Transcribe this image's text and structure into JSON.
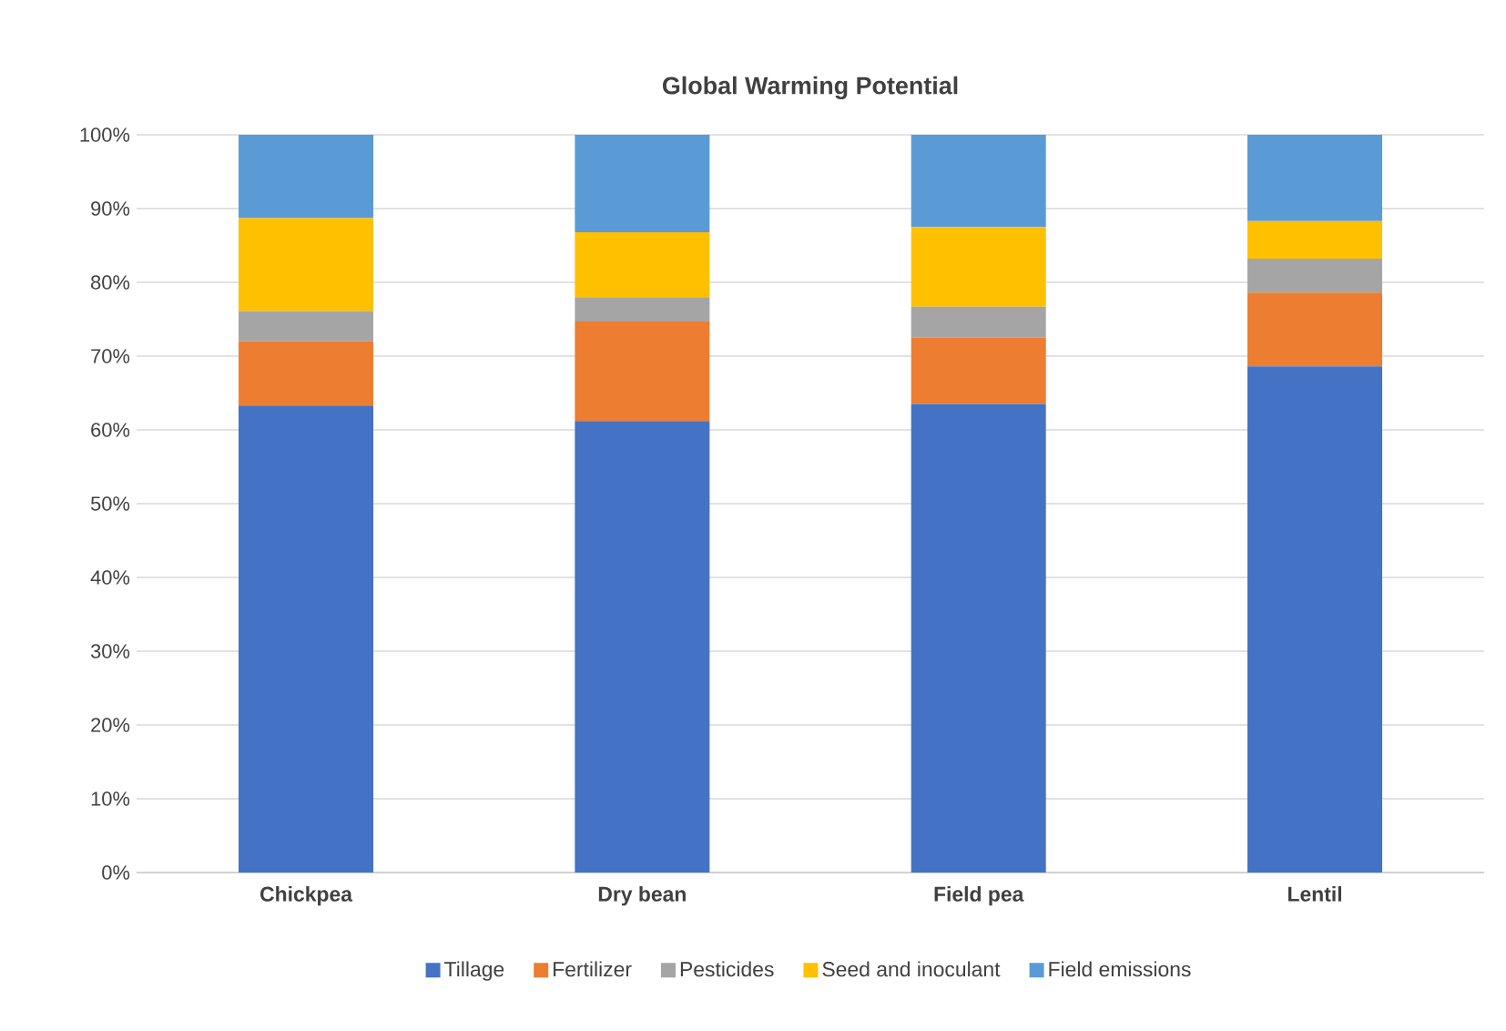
{
  "chart_data": {
    "type": "bar",
    "title": "Global Warming Potential",
    "stacked": true,
    "categories": [
      "Chickpea",
      "Dry bean",
      "Field pea",
      "Lentil"
    ],
    "series": [
      {
        "name": "Tillage",
        "color": "#4472c4",
        "values": [
          63.3,
          61.2,
          63.5,
          68.6
        ]
      },
      {
        "name": "Fertilizer",
        "color": "#ed7d31",
        "values": [
          8.7,
          13.5,
          9.0,
          10.0
        ]
      },
      {
        "name": "Pesticides",
        "color": "#a5a5a5",
        "values": [
          4.1,
          3.3,
          4.2,
          4.6
        ]
      },
      {
        "name": "Seed and inoculant",
        "color": "#ffc000",
        "values": [
          12.6,
          8.8,
          10.8,
          5.1
        ]
      },
      {
        "name": "Field emissions",
        "color": "#5b9bd5",
        "values": [
          11.3,
          13.2,
          12.5,
          11.7
        ]
      }
    ],
    "ylim": [
      0,
      100
    ],
    "yticks": [
      {
        "value": 0,
        "label": "0%"
      },
      {
        "value": 10,
        "label": "10%"
      },
      {
        "value": 20,
        "label": "20%"
      },
      {
        "value": 30,
        "label": "30%"
      },
      {
        "value": 40,
        "label": "40%"
      },
      {
        "value": 50,
        "label": "50%"
      },
      {
        "value": 60,
        "label": "60%"
      },
      {
        "value": 70,
        "label": "70%"
      },
      {
        "value": 80,
        "label": "80%"
      },
      {
        "value": 90,
        "label": "90%"
      },
      {
        "value": 100,
        "label": "100%"
      }
    ],
    "grid": "y",
    "legend": "bottom"
  }
}
